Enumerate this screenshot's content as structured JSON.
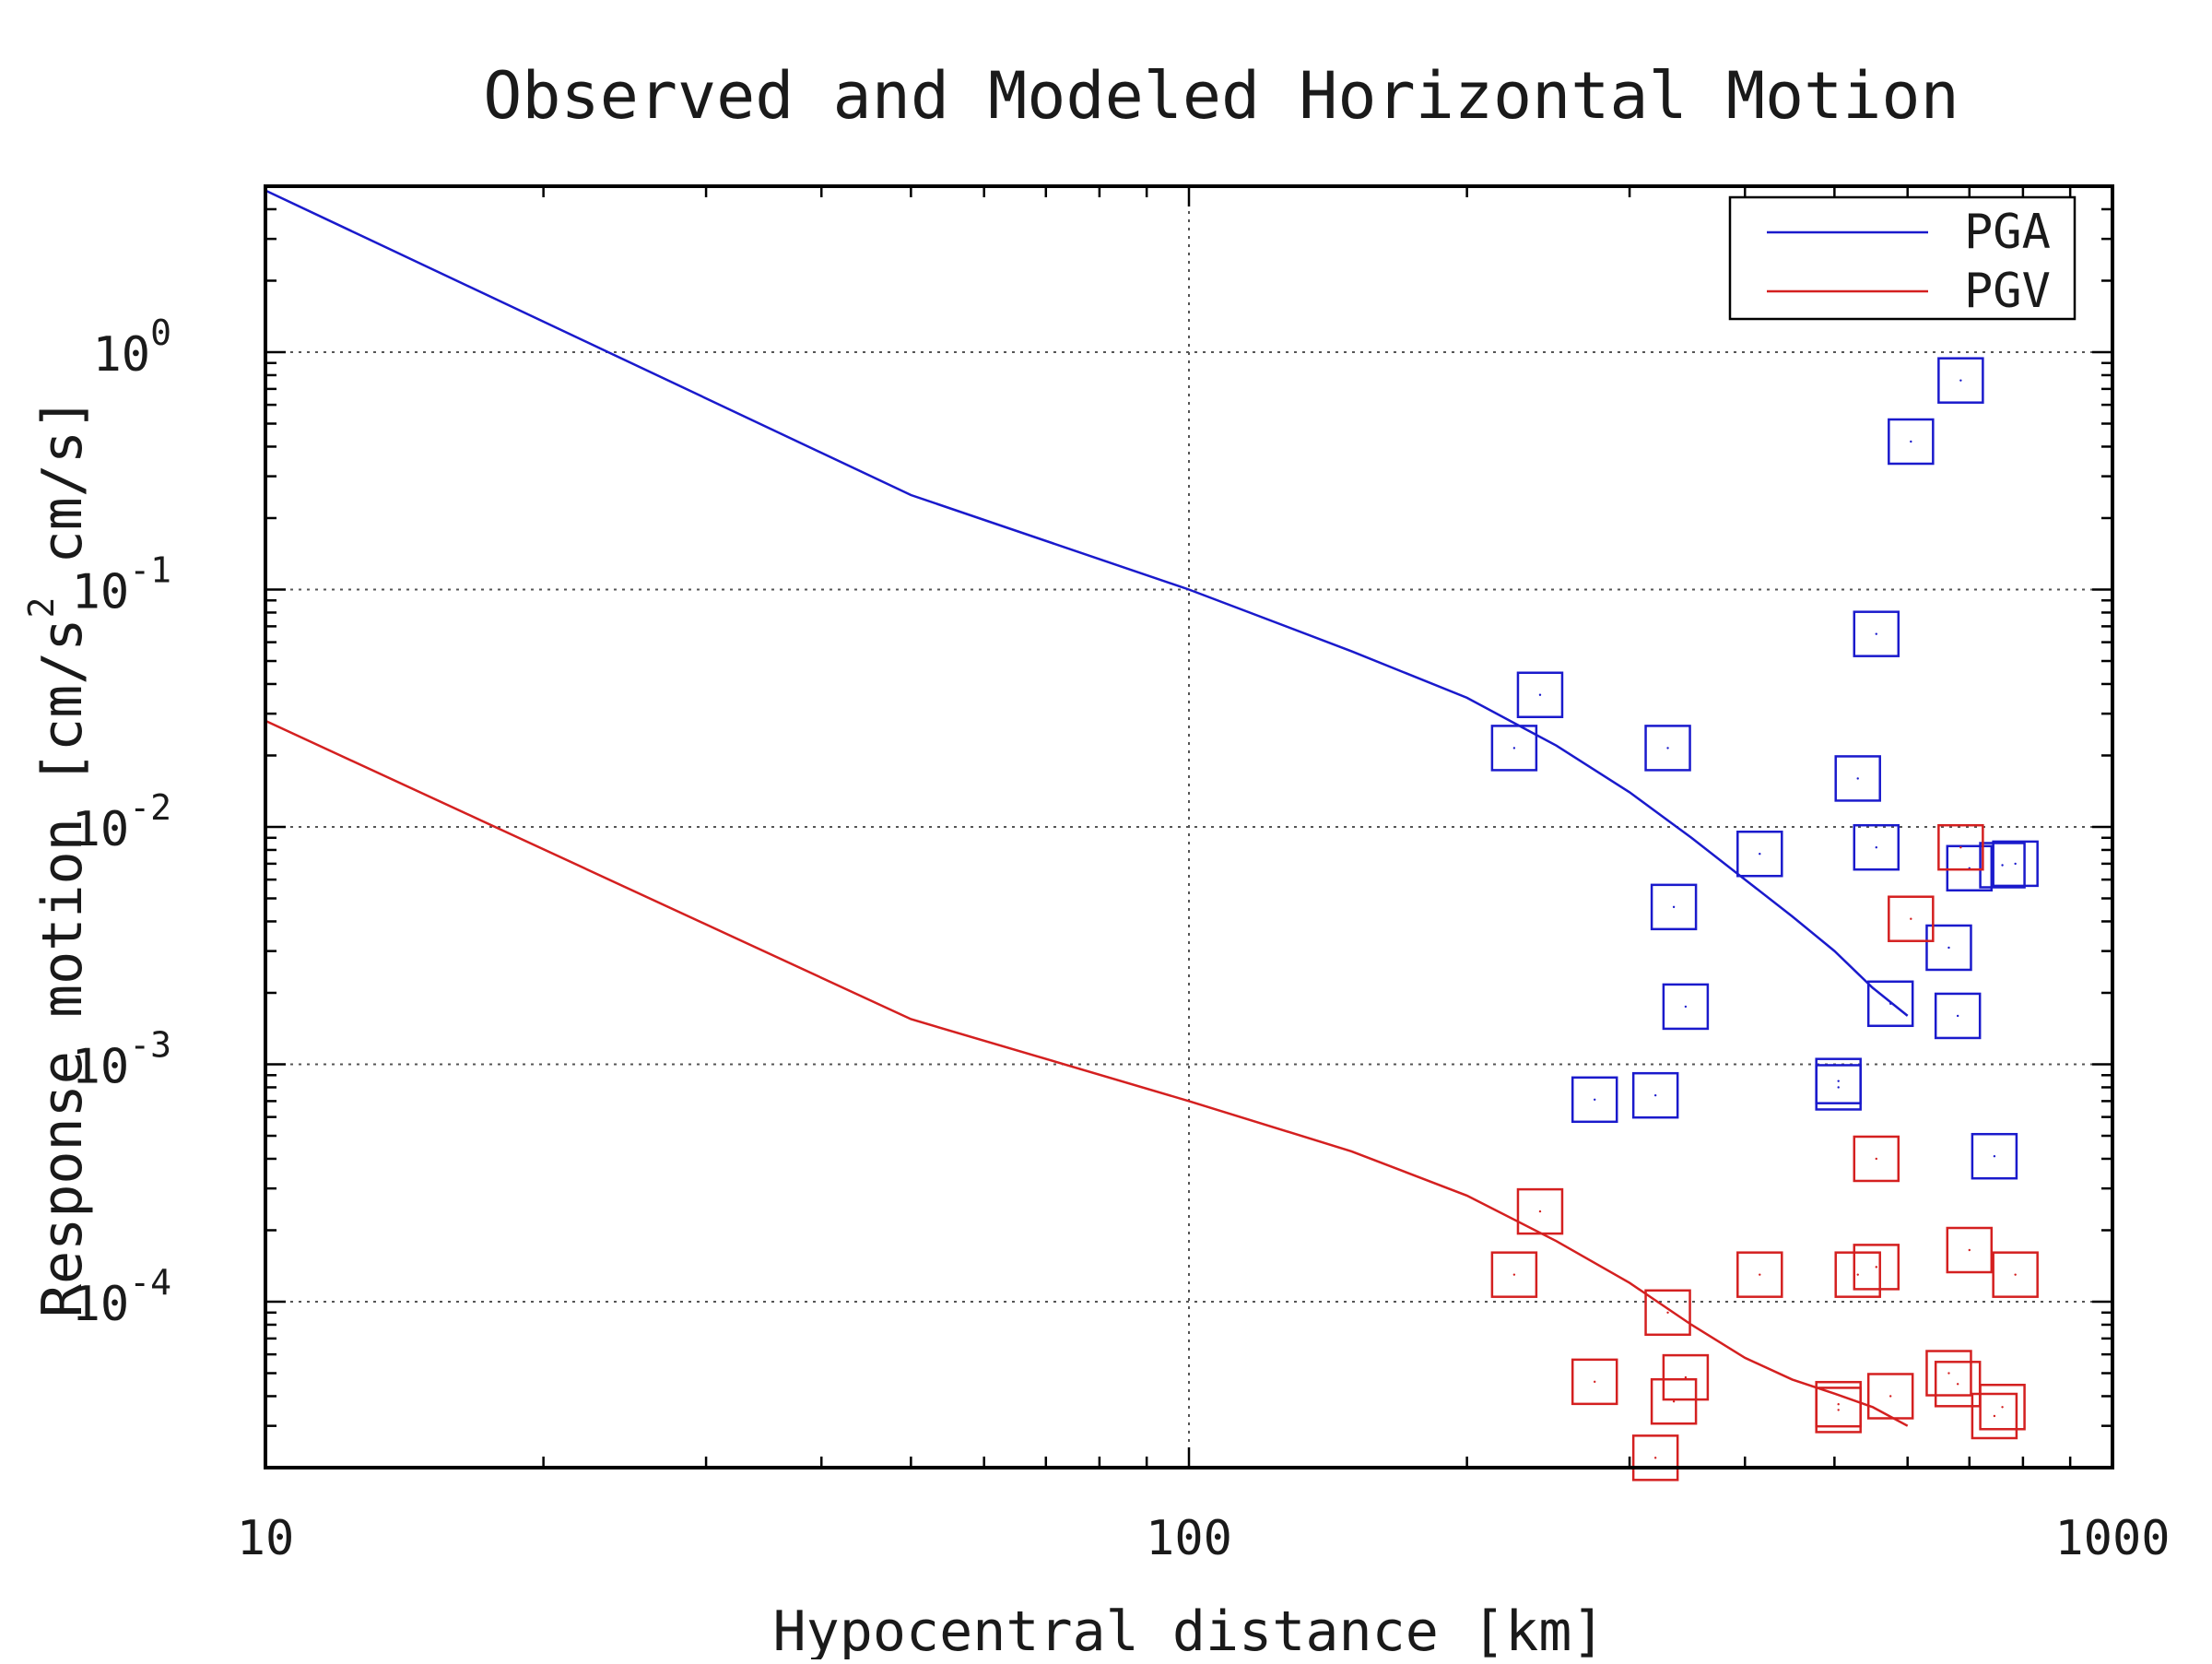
{
  "chart_data": {
    "type": "scatter",
    "title": "Observed and Modeled Horizontal Motion",
    "xlabel": "Hypocentral distance [km]",
    "ylabel_parts": [
      "Response motion  [cm/s",
      "2",
      "  cm/s]"
    ],
    "xscale": "log",
    "yscale": "log",
    "xlim": [
      10,
      1000
    ],
    "ylim": [
      2e-05,
      5
    ],
    "x_ticks": [
      {
        "v": 10,
        "label": "10"
      },
      {
        "v": 100,
        "label": "100"
      },
      {
        "v": 1000,
        "label": "1000"
      }
    ],
    "y_ticks": [
      {
        "v": 0.0001,
        "base": "10",
        "exp": "-4"
      },
      {
        "v": 0.001,
        "base": "10",
        "exp": "-3"
      },
      {
        "v": 0.01,
        "base": "10",
        "exp": "-2"
      },
      {
        "v": 0.1,
        "base": "10",
        "exp": "-1"
      },
      {
        "v": 1,
        "base": "10",
        "exp": "0"
      }
    ],
    "grid": true,
    "legend_position": "top-right",
    "series": [
      {
        "name": "PGA",
        "color": "#1a1acc",
        "line": [
          [
            10,
            4.8
          ],
          [
            50,
            0.25
          ],
          [
            100,
            0.1
          ],
          [
            150,
            0.055
          ],
          [
            200,
            0.035
          ],
          [
            250,
            0.022
          ],
          [
            300,
            0.014
          ],
          [
            350,
            0.009
          ],
          [
            400,
            0.006
          ],
          [
            450,
            0.0042
          ],
          [
            500,
            0.003
          ],
          [
            550,
            0.0021
          ],
          [
            600,
            0.0016
          ]
        ],
        "points": [
          [
            225,
            0.0215
          ],
          [
            240,
            0.036
          ],
          [
            330,
            0.0215
          ],
          [
            335,
            0.0046
          ],
          [
            345,
            0.00175
          ],
          [
            415,
            0.0077
          ],
          [
            275,
            0.00071
          ],
          [
            320,
            0.00074
          ],
          [
            505,
            0.00085
          ],
          [
            505,
            0.0008
          ],
          [
            530,
            0.016
          ],
          [
            555,
            0.065
          ],
          [
            555,
            0.0082
          ],
          [
            575,
            0.0018
          ],
          [
            605,
            0.42
          ],
          [
            665,
            0.0031
          ],
          [
            680,
            0.0016
          ],
          [
            685,
            0.76
          ],
          [
            700,
            0.0067
          ],
          [
            745,
            0.00041
          ],
          [
            760,
            0.0069
          ],
          [
            785,
            0.007
          ]
        ]
      },
      {
        "name": "PGV",
        "color": "#d42020",
        "line": [
          [
            10,
            0.028
          ],
          [
            50,
            0.00155
          ],
          [
            100,
            0.0007
          ],
          [
            150,
            0.00043
          ],
          [
            200,
            0.00028
          ],
          [
            250,
            0.00018
          ],
          [
            300,
            0.00012
          ],
          [
            350,
            8e-05
          ],
          [
            400,
            5.8e-05
          ],
          [
            450,
            4.7e-05
          ],
          [
            500,
            4.1e-05
          ],
          [
            550,
            3.6e-05
          ],
          [
            600,
            3e-05
          ]
        ],
        "points": [
          [
            225,
            0.00013
          ],
          [
            240,
            0.00024
          ],
          [
            275,
            4.6e-05
          ],
          [
            320,
            2.2e-05
          ],
          [
            330,
            9e-05
          ],
          [
            335,
            3.8e-05
          ],
          [
            345,
            4.8e-05
          ],
          [
            415,
            0.00013
          ],
          [
            505,
            3.7e-05
          ],
          [
            505,
            3.5e-05
          ],
          [
            530,
            0.00013
          ],
          [
            555,
            0.00014
          ],
          [
            555,
            0.0004
          ],
          [
            575,
            4e-05
          ],
          [
            605,
            0.0041
          ],
          [
            665,
            5e-05
          ],
          [
            680,
            4.5e-05
          ],
          [
            685,
            0.0082
          ],
          [
            700,
            0.000165
          ],
          [
            745,
            3.3e-05
          ],
          [
            760,
            3.6e-05
          ],
          [
            785,
            0.00013
          ]
        ]
      }
    ]
  }
}
